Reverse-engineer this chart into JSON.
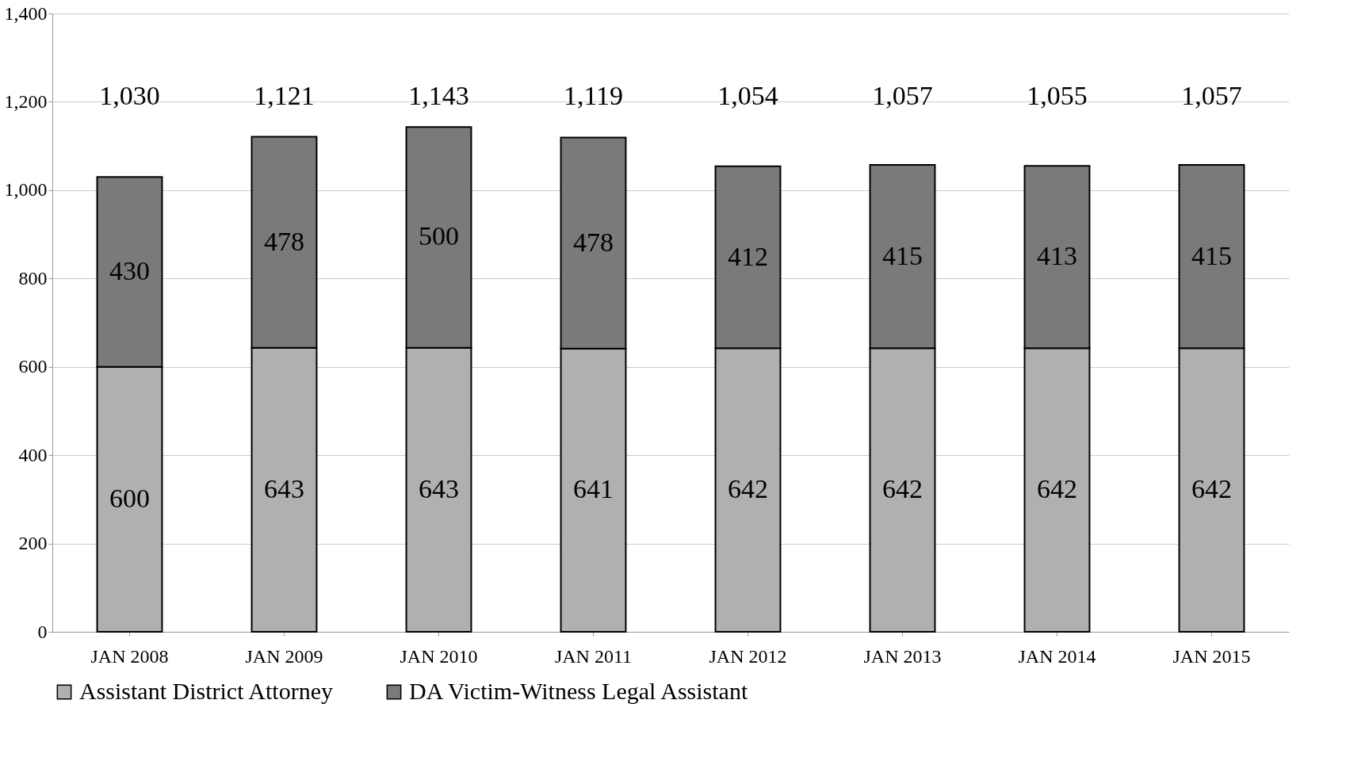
{
  "chart_data": {
    "type": "bar",
    "stacked": true,
    "categories": [
      "JAN 2008",
      "JAN 2009",
      "JAN 2010",
      "JAN 2011",
      "JAN 2012",
      "JAN 2013",
      "JAN 2014",
      "JAN 2015"
    ],
    "series": [
      {
        "name": "Assistant District Attorney",
        "color": "#b0b0b0",
        "values": [
          600,
          643,
          643,
          641,
          642,
          642,
          642,
          642
        ]
      },
      {
        "name": "DA Victim-Witness Legal Assistant",
        "color": "#7a7a7a",
        "values": [
          430,
          478,
          500,
          478,
          412,
          415,
          413,
          415
        ]
      }
    ],
    "totals": [
      "1,030",
      "1,121",
      "1,143",
      "1,119",
      "1,054",
      "1,057",
      "1,055",
      "1,057"
    ],
    "ylim": [
      0,
      1400
    ],
    "yticks": [
      {
        "value": 0,
        "label": "0"
      },
      {
        "value": 200,
        "label": "200"
      },
      {
        "value": 400,
        "label": "400"
      },
      {
        "value": 600,
        "label": "600"
      },
      {
        "value": 800,
        "label": "800"
      },
      {
        "value": 1000,
        "label": "1,000"
      },
      {
        "value": 1200,
        "label": "1,200"
      },
      {
        "value": 1400,
        "label": "1,400"
      }
    ],
    "grid": "y",
    "legend": "bottom",
    "data_labels": true
  }
}
